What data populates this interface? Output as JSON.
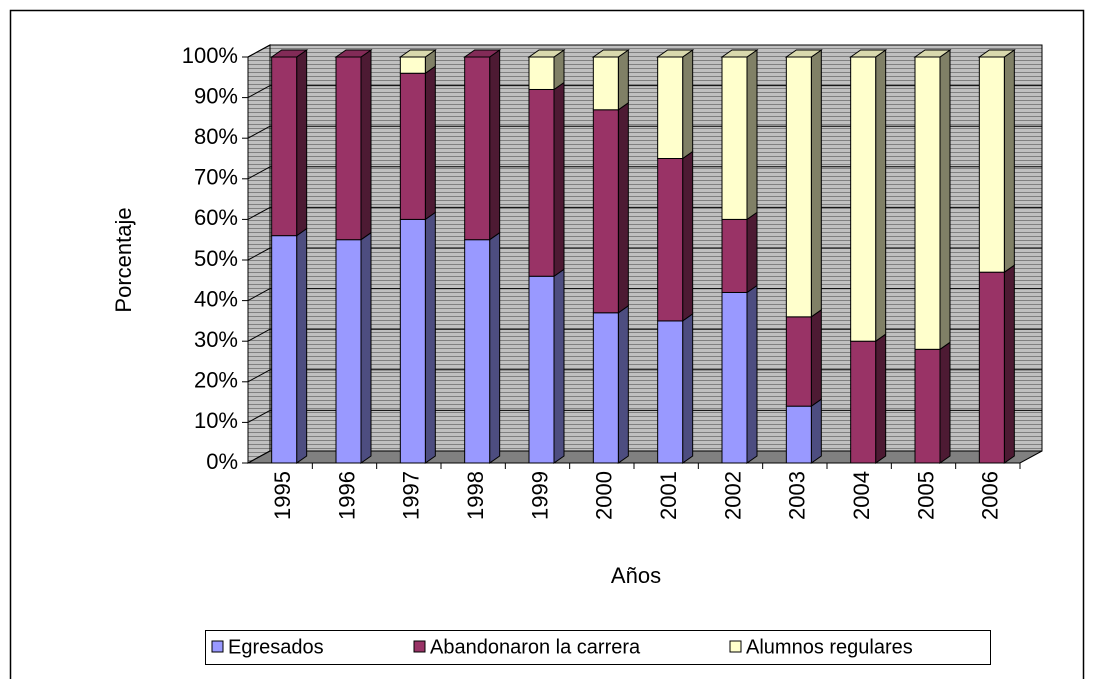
{
  "chart_data": {
    "type": "bar3d_stacked",
    "x_label": "Años",
    "y_label": "Porcentaje",
    "categories": [
      "1995",
      "1996",
      "1997",
      "1998",
      "1999",
      "2000",
      "2001",
      "2002",
      "2003",
      "2004",
      "2005",
      "2006"
    ],
    "series": [
      {
        "name": "Egresados",
        "color": "#9999ff",
        "values": [
          56,
          55,
          60,
          55,
          46,
          37,
          35,
          42,
          14,
          0,
          0,
          0
        ]
      },
      {
        "name": "Abandonaron la carrera",
        "color": "#993366",
        "values": [
          44,
          45,
          36,
          45,
          46,
          50,
          40,
          18,
          22,
          30,
          28,
          47
        ]
      },
      {
        "name": "Alumnos regulares",
        "color": "#ffffcc",
        "values": [
          0,
          0,
          4,
          0,
          8,
          13,
          25,
          40,
          64,
          70,
          72,
          53
        ]
      }
    ],
    "ylim": [
      0,
      100
    ],
    "yticks": [
      {
        "value": 0,
        "label": "0%"
      },
      {
        "value": 10,
        "label": "10%"
      },
      {
        "value": 20,
        "label": "20%"
      },
      {
        "value": 30,
        "label": "30%"
      },
      {
        "value": 40,
        "label": "40%"
      },
      {
        "value": 50,
        "label": "50%"
      },
      {
        "value": 60,
        "label": "60%"
      },
      {
        "value": 70,
        "label": "70%"
      },
      {
        "value": 80,
        "label": "80%"
      },
      {
        "value": 90,
        "label": "90%"
      },
      {
        "value": 100,
        "label": "100%"
      }
    ],
    "grid": true,
    "legend": "bottom"
  }
}
